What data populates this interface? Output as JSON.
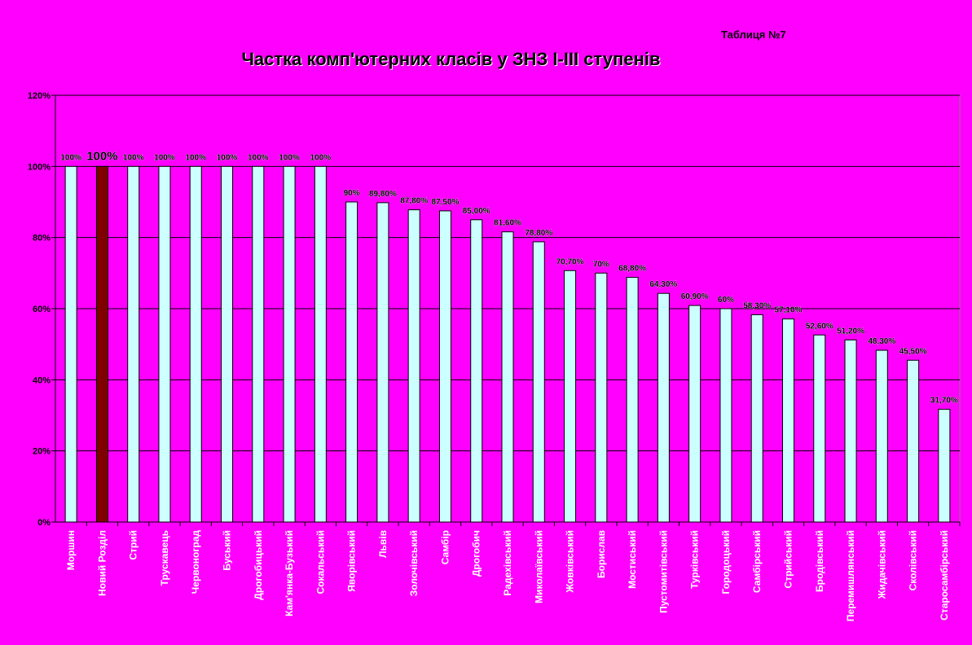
{
  "table_label": "Таблиця №7",
  "colors": {
    "background": "#ff00ff",
    "bar": "#ccffff",
    "highlight_bar": "#800000",
    "grid": "#000000"
  },
  "chart_data": {
    "type": "bar",
    "title": "Частка комп'ютерних класів у ЗНЗ І-ІІІ ступенів",
    "xlabel": "",
    "ylabel": "",
    "ylim": [
      0,
      120
    ],
    "yticks": [
      "0%",
      "20%",
      "40%",
      "60%",
      "80%",
      "100%",
      "120%"
    ],
    "grid": true,
    "legend": "none",
    "highlight_category": "Новий Розділ",
    "categories": [
      "Моршин",
      "Новий Розділ",
      "Стрий",
      "Трускавець",
      "Червоноград",
      "Буський",
      "Дрогобицький",
      "Кам'янка-Бузький",
      "Сокальський",
      "Яворівський",
      "Львів",
      "Золочівський",
      "Самбір",
      "Дрогобич",
      "Радехівський",
      "Миколаївський",
      "Жовківський",
      "Борислав",
      "Мостиський",
      "Пустомитівський",
      "Турківський",
      "Городоцький",
      "Самбірський",
      "Стрийський",
      "Бродівський",
      "Перемишлянський",
      "Жидачівський",
      "Сколівський",
      "Старосамбірський"
    ],
    "values": [
      100,
      100,
      100,
      100,
      100,
      100,
      100,
      100,
      100,
      90,
      89.8,
      87.8,
      87.5,
      85,
      81.6,
      78.8,
      70.7,
      70,
      68.8,
      64.3,
      60.9,
      60,
      58.3,
      57.1,
      52.6,
      51.2,
      48.3,
      45.5,
      31.7
    ],
    "data_labels": [
      "100%",
      "100%",
      "100%",
      "100%",
      "100%",
      "100%",
      "100%",
      "100%",
      "100%",
      "90%",
      "89,80%",
      "87,80%",
      "87,50%",
      "85,00%",
      "81,60%",
      "78,80%",
      "70,70%",
      "70%",
      "68,80%",
      "64,30%",
      "60,90%",
      "60%",
      "58,30%",
      "57,10%",
      "52,60%",
      "51,20%",
      "48,30%",
      "45,50%",
      "31,70%"
    ]
  }
}
